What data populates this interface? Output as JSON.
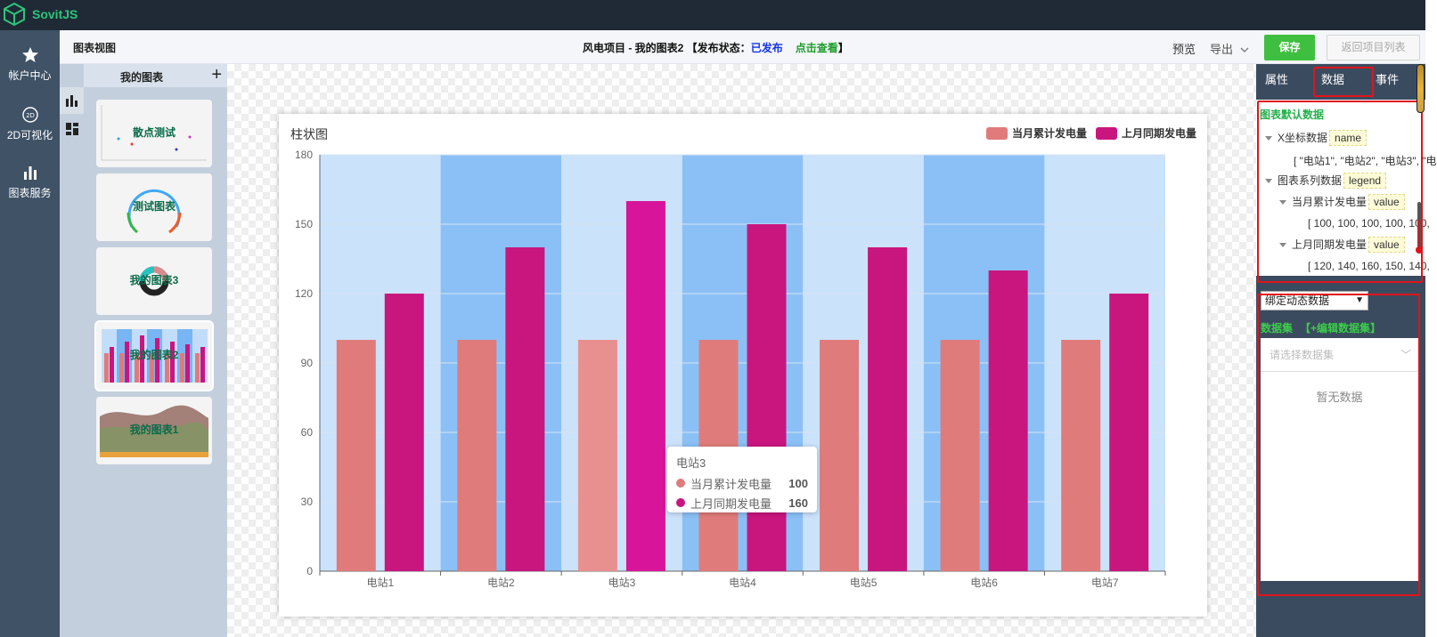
{
  "app": {
    "name": "SovitJS"
  },
  "nav": {
    "items": [
      {
        "label": "帐户中心",
        "icon": "star-icon"
      },
      {
        "label": "2D可视化",
        "icon": "2d-icon"
      },
      {
        "label": "图表服务",
        "icon": "bar-chart-icon"
      }
    ]
  },
  "header": {
    "left_title": "图表视图",
    "project_title": "风电项目 - 我的图表2 【发布状态：",
    "publish_status": "已发布",
    "view_link": "点击查看",
    "close_bracket": "】",
    "preview": "预览",
    "export": "导出",
    "save": "保存",
    "back": "返回项目列表"
  },
  "chart_list": {
    "title": "我的图表",
    "add": "+",
    "items": [
      {
        "name": "散点测试"
      },
      {
        "name": "测试图表"
      },
      {
        "name": "我的图表3"
      },
      {
        "name": "我的图表2",
        "selected": true
      },
      {
        "name": "我的图表1"
      }
    ]
  },
  "chart_data": {
    "type": "bar",
    "title": "柱状图",
    "categories": [
      "电站1",
      "电站2",
      "电站3",
      "电站4",
      "电站5",
      "电站6",
      "电站7"
    ],
    "series": [
      {
        "name": "当月累计发电量",
        "values": [
          100,
          100,
          100,
          100,
          100,
          100,
          100
        ],
        "color": "#e07b7b"
      },
      {
        "name": "上月同期发电量",
        "values": [
          120,
          140,
          160,
          150,
          140,
          130,
          120
        ],
        "color": "#c9167f"
      }
    ],
    "ylim": [
      0,
      180
    ],
    "yticks": [
      0,
      30,
      60,
      90,
      120,
      150,
      180
    ],
    "legend": "top-right",
    "grid": true,
    "category_band_colors": [
      "#c2ddfa",
      "#77b5f5"
    ],
    "highlight_category": "电站3"
  },
  "tooltip": {
    "title": "电站3",
    "rows": [
      {
        "name": "当月累计发电量",
        "value": "100",
        "color": "#e07b7b"
      },
      {
        "name": "上月同期发电量",
        "value": "160",
        "color": "#c9167f"
      }
    ]
  },
  "right_panel": {
    "tabs": [
      "属性",
      "数据",
      "事件"
    ],
    "active_tab": "数据",
    "default_data_title": "图表默认数据",
    "x_label": "X坐标数据",
    "x_tag": "name",
    "x_values": "[ \"电站1\", \"电站2\", \"电站3\", \"电",
    "series_label": "图表系列数据",
    "series_tag": "legend",
    "s1_label": "当月累计发电量",
    "s1_tag": "value",
    "s1_values": "[ 100, 100, 100, 100, 100,",
    "s2_label": "上月同期发电量",
    "s2_tag": "value",
    "s2_values": "[ 120, 140, 160, 150, 140,",
    "bind_select": "绑定动态数据",
    "dataset_label": "数据集",
    "edit_dataset": "【+编辑数据集】",
    "dataset_placeholder": "请选择数据集",
    "empty": "暂无数据"
  }
}
